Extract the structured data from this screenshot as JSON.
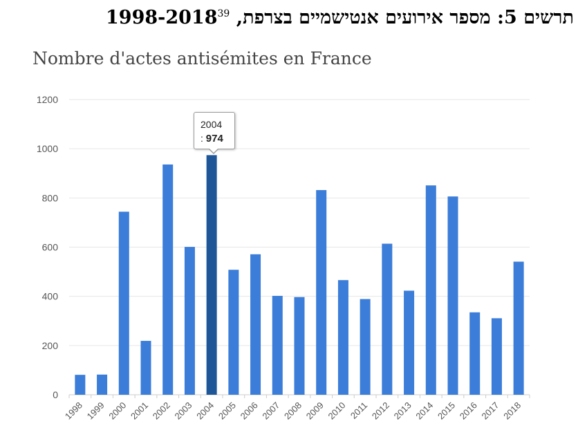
{
  "caption": {
    "text": "תרשים 5: מספר אירועים אנטישמיים בצרפת, 1998-2018",
    "footnote": "39"
  },
  "tooltip": {
    "label": "2004",
    "separator": ": ",
    "value": "974"
  },
  "chart_data": {
    "type": "bar",
    "title": "Nombre d'actes antisémites en France",
    "categories": [
      "1998",
      "1999",
      "2000",
      "2001",
      "2002",
      "2003",
      "2004",
      "2005",
      "2006",
      "2007",
      "2008",
      "2009",
      "2010",
      "2011",
      "2012",
      "2013",
      "2014",
      "2015",
      "2016",
      "2017",
      "2018"
    ],
    "values": [
      81,
      82,
      744,
      219,
      936,
      601,
      974,
      508,
      571,
      402,
      397,
      832,
      466,
      389,
      614,
      423,
      851,
      806,
      335,
      311,
      541
    ],
    "ylim": [
      0,
      1200
    ],
    "yticks": [
      0,
      200,
      400,
      600,
      800,
      1000,
      1200
    ],
    "grid": true,
    "highlighted_category": "2004",
    "colors": {
      "bar": "#3b7dd8",
      "highlight": "#1f5697",
      "grid": "#e6e6e6",
      "axis": "#cccccc"
    }
  }
}
